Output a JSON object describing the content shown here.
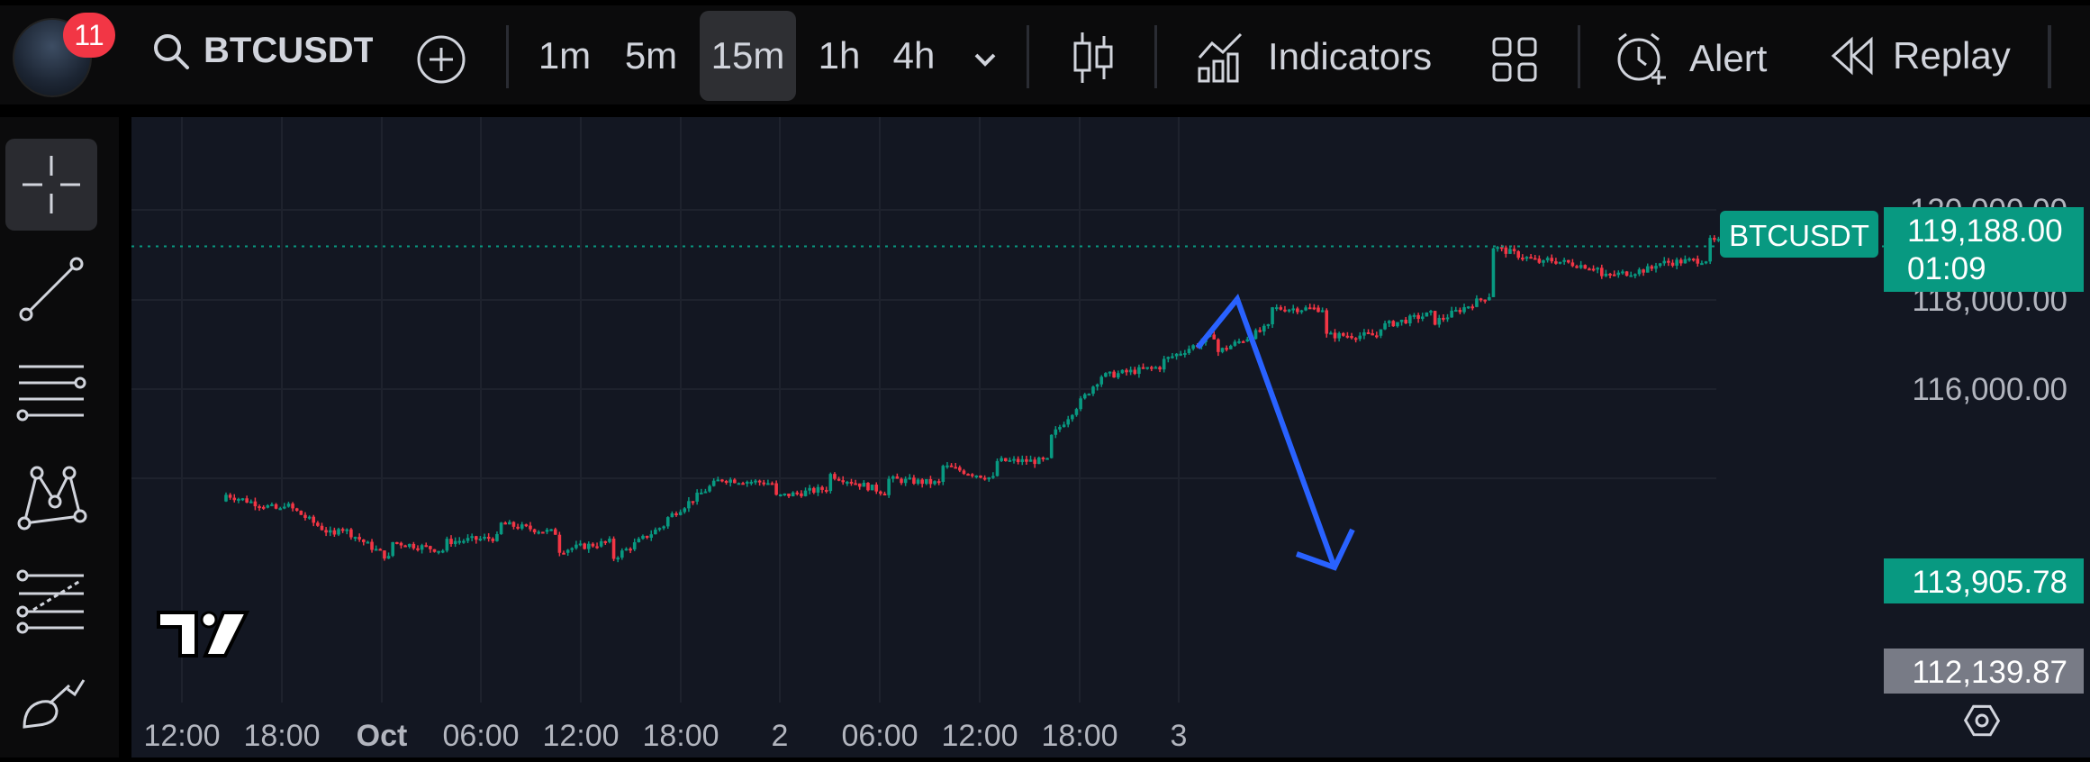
{
  "header": {
    "notification_count": "11",
    "symbol": "BTCUSDT",
    "timeframes": [
      "1m",
      "5m",
      "15m",
      "1h",
      "4h"
    ],
    "active_timeframe": "15m",
    "indicators_label": "Indicators",
    "alert_label": "Alert",
    "replay_label": "Replay"
  },
  "left_toolbar": {
    "tools": [
      "crosshair-icon",
      "trend-line-icon",
      "horizontal-lines-icon",
      "pattern-icon",
      "fib-icon",
      "brush-icon"
    ]
  },
  "chart": {
    "symbol_tag": "BTCUSDT",
    "last_price": "119,188.00",
    "countdown": "01:09",
    "marker_price_1": "113,905.78",
    "marker_price_2": "112,139.87",
    "logo": "17",
    "accent_up": "#089981",
    "accent_down": "#f23645",
    "drawing_color": "#2962ff"
  },
  "chart_data": {
    "type": "candlestick",
    "symbol": "BTCUSDT",
    "interval": "15m",
    "y_ticks": [
      "120,000.00",
      "118,000.00",
      "116,000.00"
    ],
    "y_tick_values": [
      120000,
      118000,
      116000
    ],
    "x_ticks": [
      "12:00",
      "18:00",
      "Oct",
      "06:00",
      "12:00",
      "18:00",
      "2",
      "06:00",
      "12:00",
      "18:00",
      "3"
    ],
    "current_price": 119188.0,
    "grid": true,
    "close_path": [
      [
        113500,
        113650
      ],
      [
        113300,
        113500
      ],
      [
        112700,
        113000
      ],
      [
        112200,
        112600
      ],
      [
        112400,
        112600
      ],
      [
        112700,
        113000
      ],
      [
        112800,
        112400
      ],
      [
        112600,
        112200
      ],
      [
        113000,
        113100
      ],
      [
        114000,
        114000
      ],
      [
        113900,
        113600
      ],
      [
        113800,
        114100
      ],
      [
        113700,
        114000
      ],
      [
        113900,
        114300
      ],
      [
        114000,
        114400
      ],
      [
        114400,
        114900
      ],
      [
        116400,
        116300
      ],
      [
        116500,
        116600
      ],
      [
        117200,
        116800
      ],
      [
        117400,
        117800
      ],
      [
        117800,
        117200
      ],
      [
        117200,
        117400
      ],
      [
        117700,
        117500
      ],
      [
        118100,
        119200
      ],
      [
        118800,
        118900
      ],
      [
        118700,
        118500
      ],
      [
        118700,
        118800
      ],
      [
        118900,
        119300
      ],
      [
        119200,
        119000
      ]
    ]
  }
}
